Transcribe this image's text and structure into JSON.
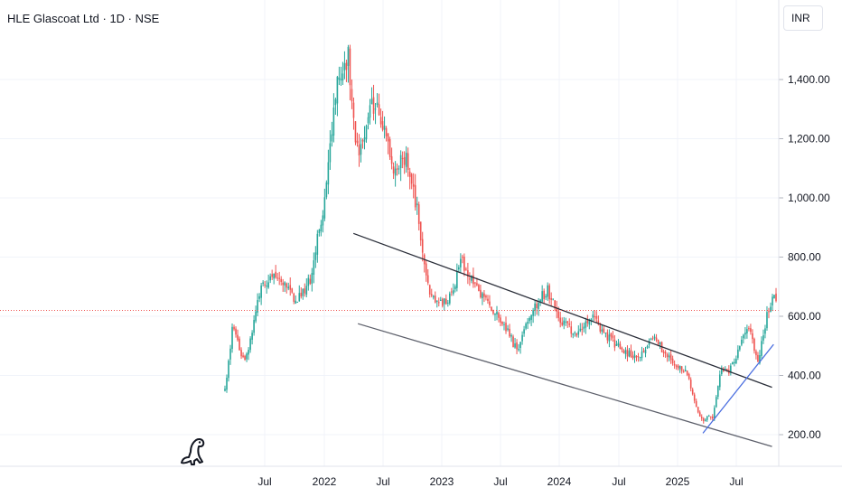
{
  "header": {
    "title": "HLE Glascoat Ltd · 1D · NSE",
    "currency": "INR"
  },
  "logo_icon": "dino-logo-icon",
  "chart_data": {
    "type": "candlestick",
    "x_ticks": [
      "Jul",
      "2022",
      "Jul",
      "2023",
      "Jul",
      "2024",
      "Jul",
      "2025",
      "Jul"
    ],
    "y_ticks": [
      200,
      400,
      600,
      800,
      1000,
      1200,
      1400
    ],
    "y_tick_labels": [
      "200.00",
      "400.00",
      "600.00",
      "800.00",
      "1,000.00",
      "1,200.00",
      "1,400.00"
    ],
    "ylim": [
      120,
      1560
    ],
    "last_price": 620,
    "up_color": "#26a69a",
    "down_color": "#ef5350",
    "price_path": [
      [
        0,
        350
      ],
      [
        0.015,
        560
      ],
      [
        0.04,
        440
      ],
      [
        0.07,
        690
      ],
      [
        0.1,
        740
      ],
      [
        0.14,
        650
      ],
      [
        0.17,
        720
      ],
      [
        0.2,
        1020
      ],
      [
        0.225,
        1420
      ],
      [
        0.245,
        1480
      ],
      [
        0.265,
        1120
      ],
      [
        0.29,
        1330
      ],
      [
        0.31,
        1270
      ],
      [
        0.335,
        1100
      ],
      [
        0.36,
        1150
      ],
      [
        0.38,
        980
      ],
      [
        0.4,
        720
      ],
      [
        0.42,
        640
      ],
      [
        0.445,
        650
      ],
      [
        0.47,
        790
      ],
      [
        0.5,
        700
      ],
      [
        0.53,
        630
      ],
      [
        0.56,
        560
      ],
      [
        0.58,
        480
      ],
      [
        0.61,
        620
      ],
      [
        0.64,
        690
      ],
      [
        0.67,
        580
      ],
      [
        0.7,
        540
      ],
      [
        0.73,
        600
      ],
      [
        0.76,
        530
      ],
      [
        0.8,
        470
      ],
      [
        0.83,
        470
      ],
      [
        0.855,
        540
      ],
      [
        0.87,
        480
      ],
      [
        0.895,
        440
      ],
      [
        0.92,
        400
      ],
      [
        0.945,
        250
      ],
      [
        0.97,
        260
      ],
      [
        0.985,
        420
      ],
      [
        1.0,
        410
      ],
      [
        1.04,
        560
      ],
      [
        1.06,
        450
      ],
      [
        1.08,
        630
      ],
      [
        1.095,
        665
      ]
    ],
    "trendlines": [
      {
        "name": "channel-upper",
        "from": [
          "2022-04-01",
          880
        ],
        "to": [
          "2025-10-20",
          360
        ],
        "color": "#2a2e39"
      },
      {
        "name": "channel-lower",
        "from": [
          "2022-04-15",
          575
        ],
        "to": [
          "2025-10-20",
          160
        ],
        "color": "#5d606b"
      },
      {
        "name": "support-rising",
        "from": [
          "2025-03-20",
          205
        ],
        "to": [
          "2025-10-25",
          505
        ],
        "color": "#4a6ee0"
      }
    ]
  }
}
